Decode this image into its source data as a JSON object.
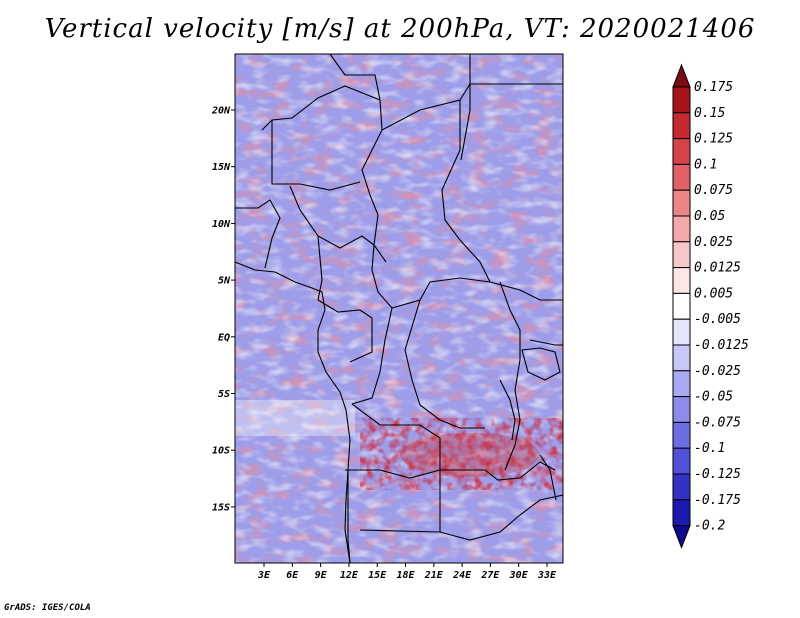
{
  "title": "Vertical velocity [m/s] at 200hPa, VT: 2020021406",
  "credit": "GrADS: IGES/COLA",
  "lat_ticks": [
    "20N",
    "15N",
    "10N",
    "5N",
    "EQ",
    "5S",
    "10S",
    "15S"
  ],
  "lon_ticks": [
    "3E",
    "6E",
    "9E",
    "12E",
    "15E",
    "18E",
    "21E",
    "24E",
    "27E",
    "30E",
    "33E"
  ],
  "colorbar": {
    "labels": [
      "0.175",
      "0.15",
      "0.125",
      "0.1",
      "0.075",
      "0.05",
      "0.025",
      "0.0125",
      "0.005",
      "-0.005",
      "-0.0125",
      "-0.025",
      "-0.05",
      "-0.075",
      "-0.1",
      "-0.125",
      "-0.175",
      "-0.2"
    ],
    "colors": [
      "#7a0a14",
      "#a8141e",
      "#c42a30",
      "#d4444a",
      "#e06266",
      "#ec8588",
      "#f4a8aa",
      "#f8c8c8",
      "#fce6e6",
      "#ffffff",
      "#e4e4fc",
      "#c8c8f8",
      "#aaaaf4",
      "#8c8cec",
      "#6e6ee4",
      "#5050d8",
      "#3232c4",
      "#1a1ab0",
      "#0c0c8c"
    ]
  },
  "chart_data": {
    "type": "heatmap",
    "title": "Vertical velocity [m/s] at 200hPa, VT: 2020021406",
    "variable": "Vertical velocity",
    "units": "m/s",
    "level": "200hPa",
    "valid_time": "2020021406",
    "lon_range_deg": [
      0,
      35
    ],
    "lat_range_deg": [
      -20,
      24
    ],
    "contour_levels": [
      -0.2,
      -0.175,
      -0.125,
      -0.1,
      -0.075,
      -0.05,
      -0.025,
      -0.0125,
      -0.005,
      0.005,
      0.0125,
      0.025,
      0.05,
      0.075,
      0.1,
      0.125,
      0.15,
      0.175
    ]
  }
}
